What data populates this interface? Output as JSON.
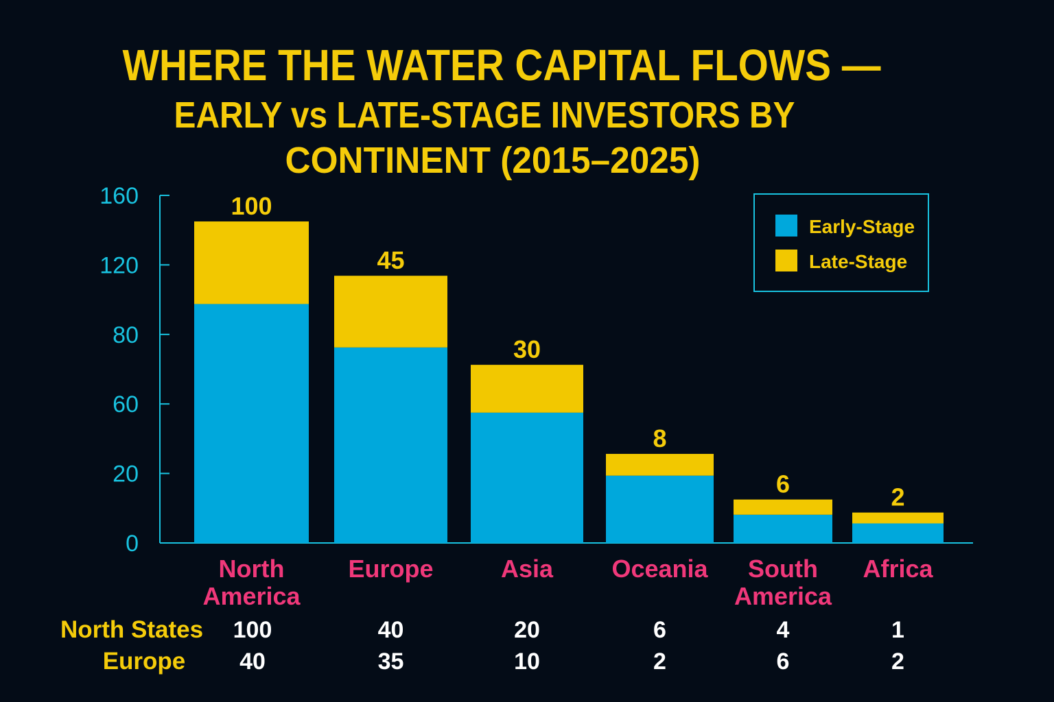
{
  "chart_data": {
    "type": "bar",
    "stacked": true,
    "title": "WHERE THE WATER CAPITAL FLOWS —",
    "subtitle_line1": "EARLY vs LATE-STAGE INVESTORS BY",
    "subtitle_line2": "CONTINENT (2015–2025)",
    "categories": [
      [
        "North",
        "America"
      ],
      [
        "Europe"
      ],
      [
        "Asia"
      ],
      [
        "Oceania"
      ],
      [
        "South",
        "America"
      ],
      [
        "Africa"
      ]
    ],
    "series": [
      {
        "name": "Early-Stage",
        "color": "#00a8dc",
        "values": [
          110,
          90,
          60,
          31,
          13,
          9
        ]
      },
      {
        "name": "Late-Stage",
        "color": "#f2c800",
        "values": [
          38,
          33,
          22,
          10,
          7,
          5
        ]
      }
    ],
    "data_labels": [
      "100",
      "45",
      "30",
      "8",
      "6",
      "2"
    ],
    "yticks": [
      "0",
      "20",
      "60",
      "80",
      "120",
      "160"
    ],
    "ylim": [
      0,
      160
    ],
    "grid": false,
    "legend_position": "top-right",
    "table": {
      "rows": [
        {
          "label": "North States",
          "values": [
            "100",
            "40",
            "20",
            "6",
            "4",
            "1"
          ]
        },
        {
          "label": "Europe",
          "values": [
            "40",
            "35",
            "10",
            "2",
            "6",
            "2"
          ]
        }
      ]
    },
    "colors": {
      "background": "#040c17",
      "axis": "#19c3e0",
      "title": "#f5cc0a",
      "category": "#f0387a"
    }
  }
}
